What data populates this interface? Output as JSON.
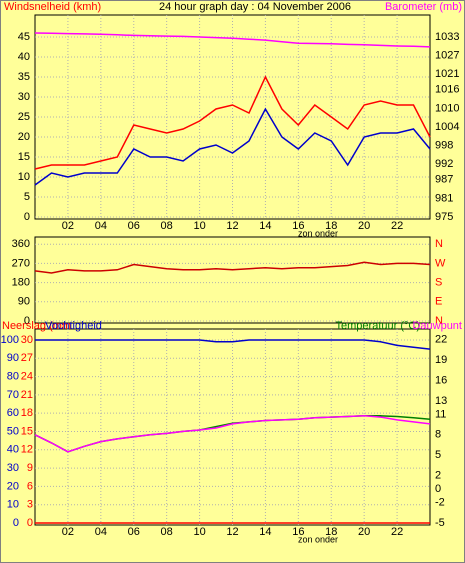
{
  "chart_data": [
    {
      "type": "line",
      "title": "24 hour graph day : 04 November 2006",
      "y_label": "Windsnelheid (kmh)",
      "y2_label": "Barometer (mb)",
      "y2_color": "#ff00ff",
      "y_color": "#ff0000",
      "note": "zon onder",
      "xlim": [
        0,
        24
      ],
      "xticks": [
        {
          "value": 2,
          "label": "02"
        },
        {
          "value": 4,
          "label": "04"
        },
        {
          "value": 6,
          "label": "06"
        },
        {
          "value": 8,
          "label": "08"
        },
        {
          "value": 10,
          "label": "10"
        },
        {
          "value": 12,
          "label": "12"
        },
        {
          "value": 14,
          "label": "14"
        },
        {
          "value": 16,
          "label": "16"
        },
        {
          "value": 18,
          "label": "18"
        },
        {
          "value": 20,
          "label": "20"
        },
        {
          "value": 22,
          "label": "22"
        }
      ],
      "ylim": [
        0,
        49.5
      ],
      "yticks": [
        0,
        5,
        10,
        15,
        20,
        25,
        30,
        35,
        40,
        45
      ],
      "y2lim": [
        975,
        1038.8
      ],
      "y2ticks": [
        975,
        981,
        987,
        992,
        998,
        1004,
        1010,
        1016,
        1021,
        1027,
        1033
      ],
      "grid": true,
      "x": [
        0,
        1,
        2,
        3,
        4,
        5,
        6,
        7,
        8,
        9,
        10,
        11,
        12,
        13,
        14,
        15,
        16,
        17,
        18,
        19,
        20,
        21,
        22,
        23,
        24
      ],
      "series": [
        {
          "color": "#ff0000",
          "axis": "y",
          "values": [
            12,
            13,
            13,
            13,
            14,
            15,
            23,
            22,
            21,
            22,
            24,
            27,
            28,
            26,
            35,
            27,
            23,
            28,
            25,
            22,
            28,
            29,
            28,
            28,
            20
          ]
        },
        {
          "color": "#0000cc",
          "axis": "y",
          "values": [
            8,
            11,
            10,
            11,
            11,
            11,
            17,
            15,
            15,
            14,
            17,
            18,
            16,
            19,
            27,
            20,
            17,
            21,
            19,
            13,
            20,
            21,
            21,
            22,
            17
          ]
        },
        {
          "color": "#ff00ff",
          "axis": "y2",
          "values": [
            1034.3,
            1034.2,
            1034.1,
            1034,
            1033.9,
            1033.7,
            1033.5,
            1033.4,
            1033.3,
            1033.2,
            1033,
            1032.8,
            1032.6,
            1032.3,
            1032,
            1031.5,
            1031,
            1030.9,
            1030.8,
            1030.6,
            1030.5,
            1030.3,
            1030.1,
            1030,
            1029.8
          ]
        }
      ]
    },
    {
      "type": "line",
      "xlim": [
        0,
        24
      ],
      "ylim": [
        0,
        375
      ],
      "yticks": [
        0,
        90,
        180,
        270,
        360
      ],
      "y2lim": [
        0,
        375
      ],
      "y2color": "#ff0000",
      "y2ticks": [
        {
          "value": 0,
          "label": "N"
        },
        {
          "value": 90,
          "label": "E"
        },
        {
          "value": 180,
          "label": "S"
        },
        {
          "value": 270,
          "label": "W"
        },
        {
          "value": 360,
          "label": "N"
        }
      ],
      "grid": true,
      "x": [
        0,
        1,
        2,
        3,
        4,
        5,
        6,
        7,
        8,
        9,
        10,
        11,
        12,
        13,
        14,
        15,
        16,
        17,
        18,
        19,
        20,
        21,
        22,
        23,
        24
      ],
      "series": [
        {
          "color": "#cc0000",
          "axis": "y",
          "values": [
            235,
            225,
            240,
            235,
            235,
            240,
            265,
            255,
            245,
            240,
            240,
            245,
            240,
            245,
            250,
            245,
            250,
            250,
            255,
            260,
            275,
            265,
            270,
            270,
            265
          ]
        }
      ]
    },
    {
      "type": "line",
      "note": "zon onder",
      "xlim": [
        0,
        24
      ],
      "xticks": [
        {
          "value": 2,
          "label": "02"
        },
        {
          "value": 4,
          "label": "04"
        },
        {
          "value": 6,
          "label": "06"
        },
        {
          "value": 8,
          "label": "08"
        },
        {
          "value": 10,
          "label": "10"
        },
        {
          "value": 12,
          "label": "12"
        },
        {
          "value": 14,
          "label": "14"
        },
        {
          "value": 16,
          "label": "16"
        },
        {
          "value": 18,
          "label": "18"
        },
        {
          "value": 20,
          "label": "20"
        },
        {
          "value": 22,
          "label": "22"
        }
      ],
      "ylim": [
        0,
        103.8
      ],
      "yticks": [
        0,
        10,
        20,
        30,
        40,
        50,
        60,
        70,
        80,
        90,
        100
      ],
      "y3lim": [
        0,
        31.14
      ],
      "y3ticks": [
        0,
        3,
        6,
        9,
        12,
        15,
        18,
        21,
        24,
        27,
        30
      ],
      "y2lim": [
        -5,
        23
      ],
      "y2ticks": [
        -5,
        -2,
        0,
        2,
        5,
        8,
        11,
        13,
        16,
        19,
        22
      ],
      "grid": true,
      "x": [
        0,
        1,
        2,
        3,
        4,
        5,
        6,
        7,
        8,
        9,
        10,
        11,
        12,
        13,
        14,
        15,
        16,
        17,
        18,
        19,
        20,
        21,
        22,
        23,
        24
      ],
      "series": [
        {
          "name": "Neerslag (mm",
          "color": "#ff0000",
          "axis": "y3",
          "values": [
            0,
            0,
            0,
            0,
            0,
            0,
            0,
            0,
            0,
            0,
            0,
            0,
            0,
            0,
            0,
            0,
            0,
            0,
            0,
            0,
            0,
            0,
            0,
            0,
            0
          ]
        },
        {
          "name": "Vochtigheid",
          "color": "#0000cc",
          "axis": "y",
          "values": [
            100,
            100,
            100,
            100,
            100,
            100,
            100,
            100,
            100,
            100,
            100,
            99,
            99,
            100,
            100,
            100,
            100,
            100,
            100,
            100,
            100,
            99,
            97,
            96,
            95
          ]
        },
        {
          "name": "Temperatuur (°C)",
          "color": "#008000",
          "axis": "y2",
          "values": [
            8,
            6.8,
            5.5,
            6.3,
            7,
            7.4,
            7.7,
            8,
            8.2,
            8.5,
            8.7,
            9.2,
            9.7,
            9.9,
            10.1,
            10.2,
            10.3,
            10.5,
            10.6,
            10.7,
            10.8,
            10.8,
            10.7,
            10.5,
            10.3
          ]
        },
        {
          "name": "Dauwpunt",
          "color": "#ff00ff",
          "axis": "y2",
          "values": [
            8,
            6.8,
            5.5,
            6.3,
            7,
            7.4,
            7.7,
            8,
            8.2,
            8.5,
            8.7,
            9,
            9.6,
            9.9,
            10.1,
            10.2,
            10.3,
            10.5,
            10.6,
            10.7,
            10.8,
            10.6,
            10.2,
            9.9,
            9.6
          ]
        }
      ]
    }
  ]
}
